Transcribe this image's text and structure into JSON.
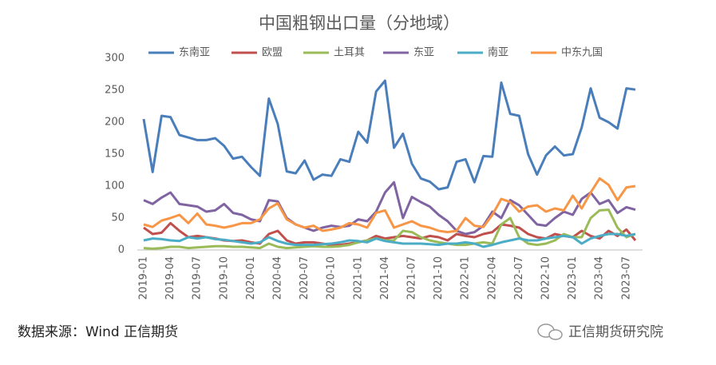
{
  "chart_data": {
    "type": "line",
    "title": "中国粗钢出口量（分地域）",
    "categories": [
      "2019-01",
      null,
      null,
      "2019-04",
      null,
      null,
      "2019-07",
      null,
      null,
      "2019-10",
      null,
      null,
      "2020-01",
      null,
      null,
      "2020-04",
      null,
      null,
      "2020-07",
      null,
      null,
      "2020-10",
      null,
      null,
      "2021-01",
      null,
      null,
      "2021-04",
      null,
      null,
      "2021-07",
      null,
      null,
      "2021-10",
      null,
      null,
      "2022-01",
      null,
      null,
      "2022-04",
      null,
      null,
      "2022-07",
      null,
      null,
      "2022-10",
      null,
      null,
      "2023-01",
      null,
      null,
      "2023-04",
      null,
      null,
      "2023-07",
      null
    ],
    "series": [
      {
        "name": "东南亚",
        "color": "#4a7ebb",
        "values": [
          205,
          122,
          210,
          208,
          180,
          176,
          172,
          172,
          175,
          163,
          143,
          146,
          130,
          116,
          237,
          197,
          123,
          120,
          140,
          110,
          118,
          116,
          142,
          138,
          185,
          168,
          248,
          265,
          160,
          182,
          135,
          112,
          107,
          95,
          98,
          138,
          142,
          106,
          147,
          146,
          262,
          213,
          210,
          150,
          118,
          148,
          162,
          148,
          150,
          192,
          253,
          207,
          200,
          190,
          253,
          251
        ]
      },
      {
        "name": "欧盟",
        "color": "#c0504d",
        "values": [
          35,
          25,
          27,
          42,
          30,
          20,
          22,
          20,
          18,
          15,
          14,
          15,
          12,
          10,
          25,
          30,
          15,
          10,
          12,
          12,
          10,
          8,
          8,
          10,
          12,
          15,
          22,
          18,
          20,
          22,
          20,
          18,
          22,
          20,
          15,
          25,
          22,
          20,
          25,
          28,
          40,
          38,
          35,
          25,
          20,
          18,
          25,
          22,
          20,
          30,
          22,
          18,
          30,
          22,
          32,
          15
        ]
      },
      {
        "name": "土耳其",
        "color": "#9bbb59",
        "values": [
          3,
          2,
          3,
          5,
          5,
          3,
          4,
          5,
          6,
          6,
          5,
          5,
          4,
          3,
          10,
          5,
          3,
          4,
          5,
          6,
          5,
          5,
          6,
          8,
          12,
          15,
          18,
          15,
          15,
          30,
          28,
          20,
          15,
          12,
          10,
          8,
          8,
          10,
          12,
          10,
          40,
          50,
          20,
          10,
          8,
          10,
          15,
          25,
          20,
          20,
          50,
          62,
          63,
          35,
          20,
          25
        ]
      },
      {
        "name": "东亚",
        "color": "#8064a2",
        "values": [
          78,
          72,
          82,
          90,
          72,
          70,
          68,
          60,
          62,
          72,
          58,
          55,
          48,
          45,
          78,
          76,
          50,
          40,
          35,
          30,
          35,
          38,
          36,
          38,
          48,
          45,
          60,
          90,
          106,
          50,
          83,
          75,
          68,
          55,
          45,
          30,
          25,
          28,
          38,
          60,
          50,
          78,
          70,
          55,
          40,
          38,
          50,
          60,
          55,
          80,
          90,
          72,
          78,
          58,
          67,
          63
        ]
      },
      {
        "name": "南亚",
        "color": "#4bacc6",
        "values": [
          15,
          18,
          17,
          15,
          14,
          20,
          18,
          20,
          17,
          16,
          14,
          12,
          10,
          12,
          20,
          14,
          10,
          8,
          8,
          8,
          9,
          10,
          12,
          15,
          14,
          12,
          18,
          14,
          12,
          10,
          10,
          10,
          9,
          8,
          10,
          10,
          12,
          10,
          5,
          8,
          12,
          15,
          18,
          15,
          15,
          18,
          20,
          22,
          20,
          10,
          18,
          22,
          25,
          25,
          22,
          25
        ]
      },
      {
        "name": "中东九国",
        "color": "#f79646",
        "values": [
          40,
          36,
          46,
          50,
          55,
          42,
          57,
          40,
          38,
          35,
          38,
          42,
          42,
          48,
          65,
          73,
          48,
          40,
          35,
          38,
          30,
          32,
          35,
          42,
          40,
          35,
          58,
          62,
          35,
          40,
          45,
          38,
          35,
          30,
          28,
          30,
          50,
          38,
          36,
          55,
          80,
          75,
          60,
          68,
          70,
          60,
          65,
          62,
          85,
          65,
          90,
          112,
          102,
          78,
          98,
          100
        ]
      }
    ],
    "ylim": [
      0,
      300
    ],
    "yticks": [
      0,
      50,
      100,
      150,
      200,
      250,
      300
    ],
    "grid": false,
    "legend": "top"
  },
  "footer": {
    "source": "数据来源：Wind  正信期货",
    "watermark": "正信期货研究院"
  }
}
